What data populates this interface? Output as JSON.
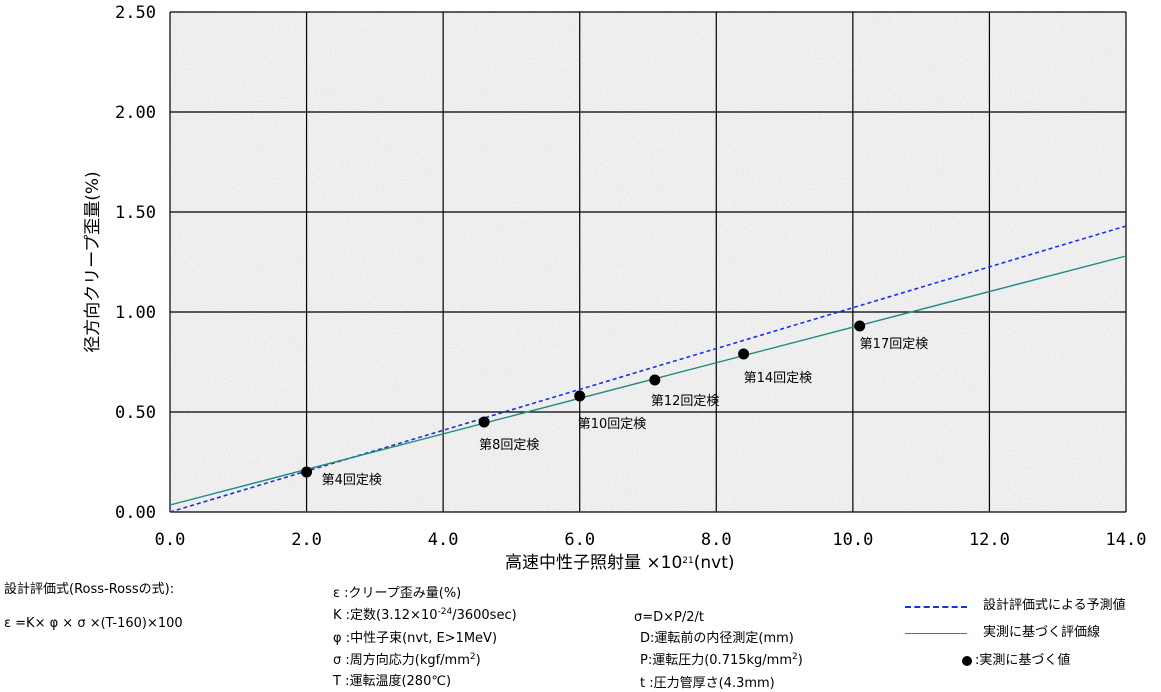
{
  "chart_data": {
    "type": "line",
    "xlabel": "高速中性子照射量 ×10²¹(nvt)",
    "xlabel_main": "高速中性子照射量 ×10",
    "xlabel_exp": "21",
    "xlabel_unit": "(nvt)",
    "ylabel": "径方向クリープ歪量(%)",
    "xlim": [
      0,
      14
    ],
    "ylim": [
      0,
      2.5
    ],
    "x_ticks": [
      "0.0",
      "2.0",
      "4.0",
      "6.0",
      "8.0",
      "10.0",
      "12.0",
      "14.0"
    ],
    "y_ticks": [
      "0.00",
      "0.50",
      "1.00",
      "1.50",
      "2.00",
      "2.50"
    ],
    "x_tick_values": [
      0,
      2,
      4,
      6,
      8,
      10,
      12,
      14
    ],
    "y_tick_values": [
      0,
      0.5,
      1.0,
      1.5,
      2.0,
      2.5
    ],
    "grid": true,
    "colors": {
      "prediction": "#1a33e0",
      "fit": "#1e8c82",
      "points": "#000000",
      "grid": "#000000",
      "background": "#dcdcdc"
    },
    "series": [
      {
        "name": "設計評価式による予測値",
        "style": "dashed",
        "x": [
          0.0,
          14.0
        ],
        "y": [
          0.0,
          1.43
        ]
      },
      {
        "name": "実測に基づく評価線",
        "style": "solid",
        "x": [
          0.0,
          14.0
        ],
        "y": [
          0.035,
          1.28
        ]
      },
      {
        "name": "実測に基づく値",
        "style": "points",
        "x": [
          2.0,
          4.6,
          6.0,
          7.1,
          8.4,
          10.1
        ],
        "y": [
          0.2,
          0.45,
          0.58,
          0.66,
          0.79,
          0.93
        ],
        "labels": [
          "第4回定検",
          "第8回定検",
          "第10回定検",
          "第12回定検",
          "第14回定検",
          "第17回定検"
        ]
      }
    ]
  },
  "notes": {
    "formula_title": "設計評価式(Ross-Rossの式):",
    "formula": "ε =K× φ × σ ×(T-160)×100",
    "defs_left": {
      "eps": "ε :クリープ歪み量(%)",
      "k_pre": "K :定数(3.12×10",
      "k_exp": "-24",
      "k_post": "/3600sec)",
      "phi": "φ :中性子束(nvt, E>1MeV)",
      "sigma_pre": "σ :周方向応力(kgf/mm",
      "sigma_exp": "2",
      "sigma_post": ")",
      "t": "T :運転温度(280℃)"
    },
    "defs_right": {
      "sigma_eq": "σ=D×P/2/t",
      "d": "D:運転前の内径測定(mm)",
      "p_pre": "P:運転圧力(0.715kg/mm",
      "p_exp": "2",
      "p_post": ")",
      "t": "t :圧力管厚さ(4.3mm)"
    }
  },
  "legend": {
    "dashed_label": "設計評価式による予測値",
    "solid_label": "実測に基づく評価線",
    "dot_label": ":実測に基づく値"
  }
}
